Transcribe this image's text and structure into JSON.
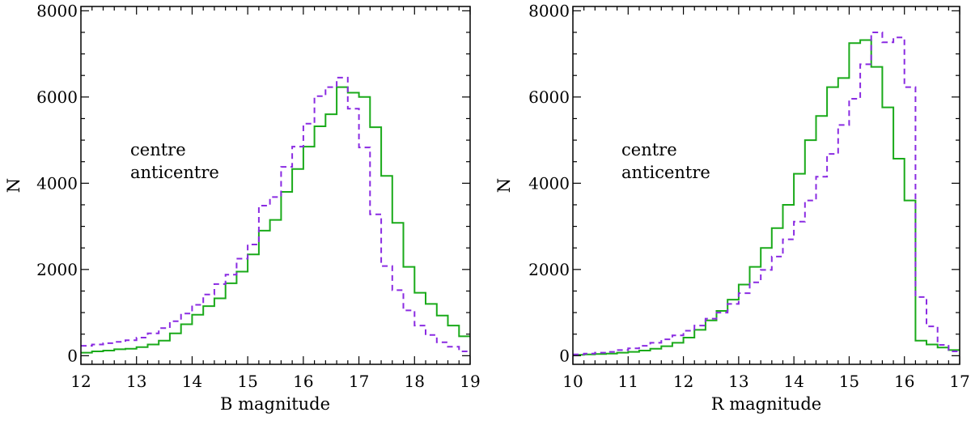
{
  "colors": {
    "centre": "#1aaa1a",
    "anticentre": "#8a2be2",
    "axis": "#000000"
  },
  "chart_data": [
    {
      "type": "line",
      "step": true,
      "xlabel": "B magnitude",
      "ylabel": "N",
      "xlim": [
        12,
        19
      ],
      "ylim": [
        -200,
        8100
      ],
      "xticks": [
        12,
        13,
        14,
        15,
        16,
        17,
        18,
        19
      ],
      "yticks": [
        0,
        2000,
        4000,
        6000,
        8000
      ],
      "bin_start": 12.0,
      "bin_width": 0.2,
      "legend": [
        "centre",
        "anticentre"
      ],
      "series": [
        {
          "name": "centre",
          "style": "solid",
          "values": [
            70,
            100,
            120,
            150,
            160,
            200,
            260,
            350,
            520,
            730,
            950,
            1150,
            1330,
            1680,
            1950,
            2350,
            2900,
            3150,
            3800,
            4330,
            4850,
            5320,
            5600,
            6230,
            6100,
            6000,
            5300,
            4170,
            3080,
            2060,
            1460,
            1200,
            930,
            700,
            450
          ]
        },
        {
          "name": "anticentre",
          "style": "dashed",
          "values": [
            230,
            260,
            290,
            320,
            360,
            420,
            520,
            640,
            800,
            980,
            1180,
            1420,
            1660,
            1880,
            2250,
            2580,
            3480,
            3680,
            4380,
            4850,
            5380,
            6020,
            6230,
            6450,
            5730,
            4830,
            3280,
            2080,
            1520,
            1050,
            700,
            480,
            310,
            210,
            100
          ]
        }
      ]
    },
    {
      "type": "line",
      "step": true,
      "xlabel": "R magnitude",
      "ylabel": "N",
      "xlim": [
        10,
        17
      ],
      "ylim": [
        -200,
        8100
      ],
      "xticks": [
        10,
        11,
        12,
        13,
        14,
        15,
        16,
        17
      ],
      "yticks": [
        0,
        2000,
        4000,
        6000,
        8000
      ],
      "bin_start": 10.0,
      "bin_width": 0.2,
      "legend": [
        "centre",
        "anticentre"
      ],
      "series": [
        {
          "name": "centre",
          "style": "solid",
          "values": [
            20,
            30,
            40,
            50,
            70,
            90,
            120,
            160,
            220,
            300,
            420,
            600,
            820,
            1040,
            1300,
            1650,
            2060,
            2500,
            2960,
            3500,
            4220,
            5000,
            5560,
            6230,
            6440,
            7250,
            7320,
            6700,
            5760,
            4570,
            3600,
            350,
            260,
            190,
            130
          ]
        },
        {
          "name": "anticentre",
          "style": "dashed",
          "values": [
            30,
            50,
            70,
            90,
            130,
            170,
            230,
            300,
            380,
            470,
            580,
            700,
            860,
            1000,
            1200,
            1450,
            1700,
            1990,
            2300,
            2700,
            3110,
            3600,
            4150,
            4680,
            5350,
            5960,
            6760,
            7500,
            7270,
            7380,
            6230,
            1360,
            680,
            250,
            100
          ]
        }
      ]
    }
  ]
}
